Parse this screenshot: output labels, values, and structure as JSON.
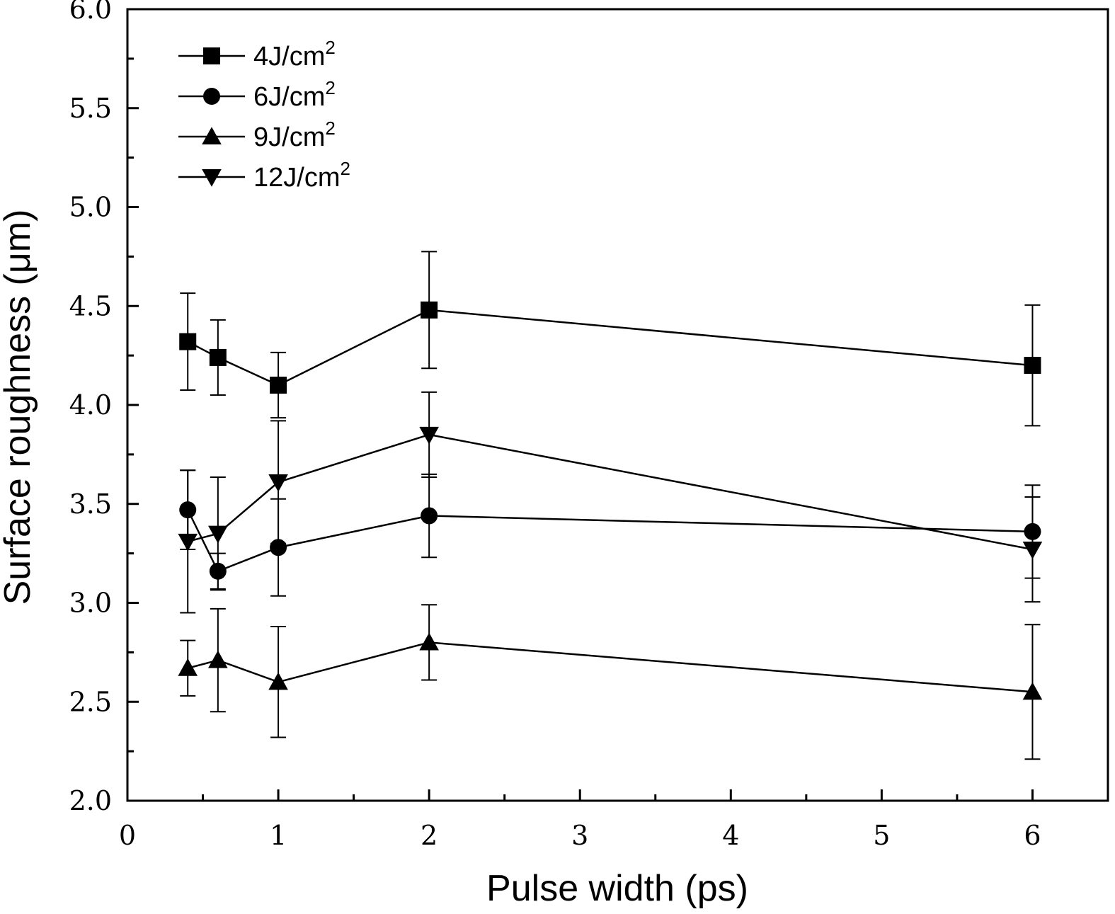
{
  "chart_data": {
    "type": "line",
    "xlabel": "Pulse width (ps)",
    "ylabel": "Surface roughness (μm)",
    "xlim": [
      0,
      6.5
    ],
    "ylim": [
      2.0,
      6.0
    ],
    "x_ticks": [
      0,
      1,
      2,
      3,
      4,
      5,
      6
    ],
    "x_tick_labels": [
      "0",
      "1",
      "2",
      "3",
      "4",
      "5",
      "6"
    ],
    "y_ticks": [
      2.0,
      2.5,
      3.0,
      3.5,
      4.0,
      4.5,
      5.0,
      5.5,
      6.0
    ],
    "y_tick_labels": [
      "2.0",
      "2.5",
      "3.0",
      "3.5",
      "4.0",
      "4.5",
      "5.0",
      "5.5",
      "6.0"
    ],
    "error_bars": true,
    "grid": false,
    "legend_position": "top-left",
    "x": [
      0.4,
      0.6,
      1,
      2,
      6
    ],
    "series": [
      {
        "name": "4J/cm",
        "name_superscript": "2",
        "marker": "square",
        "values": [
          4.32,
          4.24,
          4.1,
          4.48,
          4.2
        ],
        "errors": [
          0.245,
          0.19,
          0.165,
          0.295,
          0.305
        ]
      },
      {
        "name": "6J/cm",
        "name_superscript": "2",
        "marker": "circle",
        "values": [
          3.47,
          3.16,
          3.28,
          3.44,
          3.36
        ],
        "errors": [
          0.2,
          0.09,
          0.245,
          0.21,
          0.235
        ]
      },
      {
        "name": "9J/cm",
        "name_superscript": "2",
        "marker": "triangle-up",
        "values": [
          2.67,
          2.71,
          2.6,
          2.8,
          2.55
        ],
        "errors": [
          0.14,
          0.26,
          0.28,
          0.19,
          0.34
        ]
      },
      {
        "name": "12J/cm",
        "name_superscript": "2",
        "marker": "triangle-down",
        "values": [
          3.31,
          3.35,
          3.61,
          3.85,
          3.27
        ],
        "errors": [
          0.36,
          0.285,
          0.31,
          0.215,
          0.265
        ]
      }
    ],
    "colors": {
      "line": "#000000",
      "marker": "#000000",
      "background": "#ffffff"
    }
  }
}
